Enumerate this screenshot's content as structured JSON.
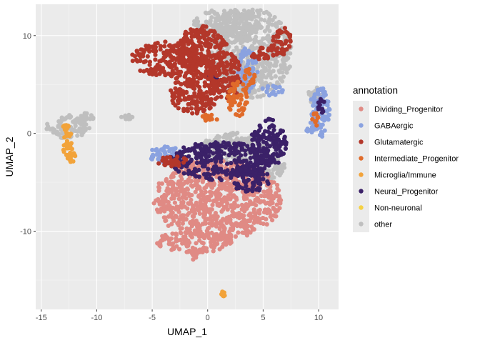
{
  "chart_data": {
    "type": "scatter",
    "xlabel": "UMAP_1",
    "ylabel": "UMAP_2",
    "xlim": [
      -15.5,
      11.8
    ],
    "ylim": [
      -18.0,
      13.2
    ],
    "xticks": [
      -15,
      -10,
      -5,
      0,
      5,
      10
    ],
    "yticks": [
      -10,
      0,
      10
    ],
    "grid": true,
    "legend": {
      "title": "annotation",
      "position": "right",
      "entries": [
        {
          "name": "Dividing_Progenitor",
          "color": "#e08a84"
        },
        {
          "name": "GABAergic",
          "color": "#8aa2e0"
        },
        {
          "name": "Glutamatergic",
          "color": "#b3372a"
        },
        {
          "name": "Intermediate_Progenitor",
          "color": "#e06b2a"
        },
        {
          "name": "Microglia/Immune",
          "color": "#f2a33a"
        },
        {
          "name": "Neural_Progenitor",
          "color": "#3b2168"
        },
        {
          "name": "Non-neuronal",
          "color": "#f5d142"
        },
        {
          "name": "other",
          "color": "#bfbfbf"
        }
      ]
    },
    "series": [
      {
        "name": "other",
        "color": "#bfbfbf",
        "regions": [
          {
            "cx": 3.8,
            "cy": 8.2,
            "rx": 3.8,
            "ry": 4.6
          },
          {
            "cx": 1.5,
            "cy": 11.0,
            "rx": 2.8,
            "ry": 1.8
          },
          {
            "cx": -12.6,
            "cy": 0.7,
            "rx": 2.0,
            "ry": 1.2
          },
          {
            "cx": -11.2,
            "cy": 1.5,
            "rx": 1.0,
            "ry": 0.6
          },
          {
            "cx": -7.3,
            "cy": 1.6,
            "rx": 0.55,
            "ry": 0.3
          },
          {
            "cx": 9.7,
            "cy": 3.8,
            "rx": 0.7,
            "ry": 0.9
          },
          {
            "cx": 5.5,
            "cy": -3.5,
            "rx": 1.5,
            "ry": 1.4
          },
          {
            "cx": 2.5,
            "cy": -1.5,
            "rx": 3.0,
            "ry": 1.6
          }
        ]
      },
      {
        "name": "GABAergic",
        "color": "#8aa2e0",
        "regions": [
          {
            "cx": 10.1,
            "cy": 2.2,
            "rx": 0.9,
            "ry": 2.6
          },
          {
            "cx": 9.5,
            "cy": 0.6,
            "rx": 0.7,
            "ry": 0.6
          },
          {
            "cx": -3.8,
            "cy": -2.2,
            "rx": 1.5,
            "ry": 0.9
          },
          {
            "cx": 5.8,
            "cy": 4.3,
            "rx": 1.0,
            "ry": 0.6
          },
          {
            "cx": 3.6,
            "cy": 6.5,
            "rx": 0.9,
            "ry": 2.3
          }
        ]
      },
      {
        "name": "Dividing_Progenitor",
        "color": "#e08a84",
        "regions": [
          {
            "cx": 0.9,
            "cy": -6.8,
            "rx": 5.8,
            "ry": 4.1
          },
          {
            "cx": -1.2,
            "cy": -11.1,
            "rx": 3.5,
            "ry": 1.1
          },
          {
            "cx": -1.2,
            "cy": -12.4,
            "rx": 0.35,
            "ry": 0.6
          }
        ]
      },
      {
        "name": "Neural_Progenitor",
        "color": "#3b2168",
        "regions": [
          {
            "cx": 1.2,
            "cy": -2.8,
            "rx": 4.6,
            "ry": 2.0
          },
          {
            "cx": 5.5,
            "cy": -1.0,
            "rx": 1.6,
            "ry": 2.5
          },
          {
            "cx": 3.8,
            "cy": -4.7,
            "rx": 1.8,
            "ry": 1.3
          },
          {
            "cx": 0.5,
            "cy": 5.8,
            "rx": 0.6,
            "ry": 0.5
          },
          {
            "cx": 10.2,
            "cy": 3.0,
            "rx": 0.3,
            "ry": 1.2
          }
        ]
      },
      {
        "name": "Glutamatergic",
        "color": "#b3372a",
        "regions": [
          {
            "cx": -3.6,
            "cy": 7.6,
            "rx": 3.3,
            "ry": 1.8
          },
          {
            "cx": -0.5,
            "cy": 8.4,
            "rx": 2.3,
            "ry": 2.6
          },
          {
            "cx": -1.2,
            "cy": 4.2,
            "rx": 2.2,
            "ry": 2.2
          },
          {
            "cx": 1.5,
            "cy": 5.8,
            "rx": 1.6,
            "ry": 2.6
          },
          {
            "cx": 6.6,
            "cy": 9.5,
            "rx": 0.9,
            "ry": 1.5
          },
          {
            "cx": 5.2,
            "cy": 8.1,
            "rx": 1.3,
            "ry": 0.7
          },
          {
            "cx": -3.2,
            "cy": -2.8,
            "rx": 1.5,
            "ry": 0.6
          }
        ]
      },
      {
        "name": "Intermediate_Progenitor",
        "color": "#e06b2a",
        "regions": [
          {
            "cx": 2.7,
            "cy": 3.5,
            "rx": 0.9,
            "ry": 1.8
          },
          {
            "cx": 3.8,
            "cy": 5.6,
            "rx": 0.5,
            "ry": 1.3
          },
          {
            "cx": 9.8,
            "cy": 1.5,
            "rx": 0.4,
            "ry": 0.7
          },
          {
            "cx": 0.2,
            "cy": 1.6,
            "rx": 0.8,
            "ry": 0.4
          }
        ]
      },
      {
        "name": "Microglia/Immune",
        "color": "#f2a33a",
        "regions": [
          {
            "cx": -12.6,
            "cy": -1.0,
            "rx": 0.45,
            "ry": 1.7
          },
          {
            "cx": -12.2,
            "cy": -2.6,
            "rx": 0.3,
            "ry": 0.7
          },
          {
            "cx": -12.8,
            "cy": 0.6,
            "rx": 0.3,
            "ry": 0.4
          },
          {
            "cx": 1.4,
            "cy": -16.4,
            "rx": 0.2,
            "ry": 0.25
          }
        ]
      }
    ]
  }
}
